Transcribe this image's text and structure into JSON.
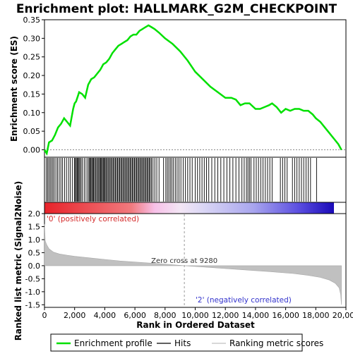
{
  "chart_data": {
    "type": "line",
    "title": "Enrichment plot: HALLMARK_G2M_CHECKPOINT",
    "xlabel": "Rank in Ordered Dataset",
    "top_panel": {
      "ylabel": "Enrichment score (ES)",
      "ylim": [
        -0.02,
        0.35
      ],
      "yticks": [
        "0.35",
        "0.30",
        "0.25",
        "0.20",
        "0.15",
        "0.10",
        "0.05",
        "0.00"
      ],
      "ytick_values": [
        0.35,
        0.3,
        0.25,
        0.2,
        0.15,
        0.1,
        0.05,
        0.0
      ],
      "series": [
        {
          "name": "Enrichment profile",
          "color": "#00e000",
          "x": [
            0,
            150,
            300,
            500,
            700,
            900,
            1100,
            1300,
            1500,
            1700,
            1900,
            2000,
            2100,
            2300,
            2500,
            2700,
            2900,
            3100,
            3300,
            3500,
            3700,
            3900,
            4100,
            4300,
            4500,
            4700,
            4900,
            5100,
            5300,
            5500,
            5700,
            5900,
            6100,
            6300,
            6500,
            6700,
            6900,
            7100,
            7300,
            7600,
            8000,
            8500,
            9000,
            9500,
            10000,
            10500,
            11000,
            11500,
            12000,
            12400,
            12700,
            13000,
            13300,
            13600,
            14000,
            14300,
            14600,
            14900,
            15100,
            15400,
            15700,
            16000,
            16300,
            16600,
            16900,
            17200,
            17500,
            17800,
            18000,
            18300,
            18600,
            18900,
            19200,
            19500,
            19700
          ],
          "y": [
            0.0,
            -0.01,
            0.02,
            0.025,
            0.04,
            0.06,
            0.07,
            0.085,
            0.075,
            0.065,
            0.11,
            0.125,
            0.13,
            0.155,
            0.15,
            0.14,
            0.175,
            0.19,
            0.195,
            0.205,
            0.215,
            0.23,
            0.235,
            0.245,
            0.26,
            0.27,
            0.28,
            0.285,
            0.29,
            0.295,
            0.305,
            0.31,
            0.31,
            0.32,
            0.325,
            0.33,
            0.335,
            0.33,
            0.325,
            0.315,
            0.3,
            0.285,
            0.265,
            0.24,
            0.21,
            0.19,
            0.17,
            0.155,
            0.14,
            0.14,
            0.135,
            0.12,
            0.125,
            0.125,
            0.11,
            0.11,
            0.115,
            0.12,
            0.125,
            0.115,
            0.1,
            0.11,
            0.105,
            0.11,
            0.11,
            0.105,
            0.105,
            0.095,
            0.085,
            0.075,
            0.06,
            0.045,
            0.03,
            0.015,
            0.0
          ]
        }
      ]
    },
    "hits_panel": {
      "label": "Hits",
      "hit_ranks": [
        120,
        210,
        290,
        380,
        470,
        560,
        650,
        760,
        870,
        980,
        1090,
        1200,
        1330,
        1460,
        1600,
        1720,
        1860,
        1990,
        2050,
        2110,
        2170,
        2230,
        2290,
        2350,
        2430,
        2520,
        2640,
        2760,
        2880,
        2960,
        3020,
        3080,
        3140,
        3200,
        3260,
        3320,
        3390,
        3460,
        3530,
        3600,
        3660,
        3720,
        3780,
        3840,
        3900,
        3960,
        4020,
        4080,
        4150,
        4220,
        4290,
        4360,
        4430,
        4500,
        4570,
        4640,
        4710,
        4780,
        4850,
        4920,
        4990,
        5060,
        5130,
        5200,
        5270,
        5340,
        5410,
        5480,
        5550,
        5620,
        5690,
        5760,
        5830,
        5900,
        5970,
        6040,
        6110,
        6180,
        6250,
        6320,
        6390,
        6460,
        6530,
        6600,
        6670,
        6740,
        6810,
        6880,
        6950,
        7020,
        7100,
        7200,
        7320,
        7450,
        7600,
        7900,
        8050,
        8150,
        8250,
        8350,
        8450,
        8560,
        8680,
        8800,
        8920,
        9050,
        9200,
        9350,
        9500,
        9650,
        9800,
        10000,
        10150,
        10300,
        10450,
        10600,
        10750,
        10900,
        11100,
        11300,
        11500,
        11700,
        11900,
        12100,
        12300,
        12500,
        12700,
        12900,
        13100,
        13250,
        13400,
        13500,
        13600,
        13700,
        13900,
        14050,
        14200,
        14350,
        14500,
        14650,
        14800,
        14950,
        15100,
        15650,
        15800,
        15950,
        16100,
        16450,
        16600,
        16750,
        16900,
        17050,
        17200,
        17350,
        17500,
        17650,
        18050
      ]
    },
    "metric_panel": {
      "ylabel": "Ranked list metric (Signal2Noise)",
      "ylim": [
        -1.6,
        2.0
      ],
      "yticks": [
        "2.0",
        "1.5",
        "1.0",
        "0.5",
        "0.0",
        "-0.5",
        "-1.0",
        "-1.5"
      ],
      "ytick_values": [
        2.0,
        1.5,
        1.0,
        0.5,
        0.0,
        -0.5,
        -1.0,
        -1.5
      ],
      "x": [
        0,
        50,
        150,
        300,
        600,
        1000,
        1500,
        2000,
        3000,
        4000,
        5000,
        6000,
        7000,
        8000,
        9280,
        10500,
        12000,
        13500,
        15000,
        16500,
        17500,
        18300,
        18900,
        19300,
        19550,
        19650,
        19700
      ],
      "values": [
        1.6,
        0.95,
        0.8,
        0.65,
        0.52,
        0.45,
        0.4,
        0.36,
        0.3,
        0.24,
        0.18,
        0.14,
        0.1,
        0.06,
        0.0,
        -0.05,
        -0.11,
        -0.17,
        -0.23,
        -0.3,
        -0.37,
        -0.45,
        -0.55,
        -0.68,
        -0.85,
        -1.1,
        -1.5
      ],
      "zero_cross_label": "Zero cross at 9280",
      "zero_cross": 9280,
      "positive_label": "'0' (positively correlated)",
      "negative_label": "'2' (negatively correlated)"
    },
    "xlim": [
      0,
      20000
    ],
    "xticks": [
      "0",
      "2,000",
      "4,000",
      "6,000",
      "8,000",
      "10,000",
      "12,000",
      "14,000",
      "16,000",
      "18,000",
      "20,000"
    ],
    "xtick_values": [
      0,
      2000,
      4000,
      6000,
      8000,
      10000,
      12000,
      14000,
      16000,
      18000,
      20000
    ],
    "n_genes": 19700,
    "legend": {
      "items": [
        {
          "label": "Enrichment profile",
          "color": "#00e000"
        },
        {
          "label": "Hits",
          "color": "#000000"
        },
        {
          "label": "Ranking metric scores",
          "color": "#c0c0c0"
        }
      ]
    },
    "colors": {
      "profile": "#00e000",
      "hits": "#000000",
      "metric_fill": "#c0c0c0",
      "positive": "#d42a2a",
      "negative": "#3333cc"
    }
  }
}
